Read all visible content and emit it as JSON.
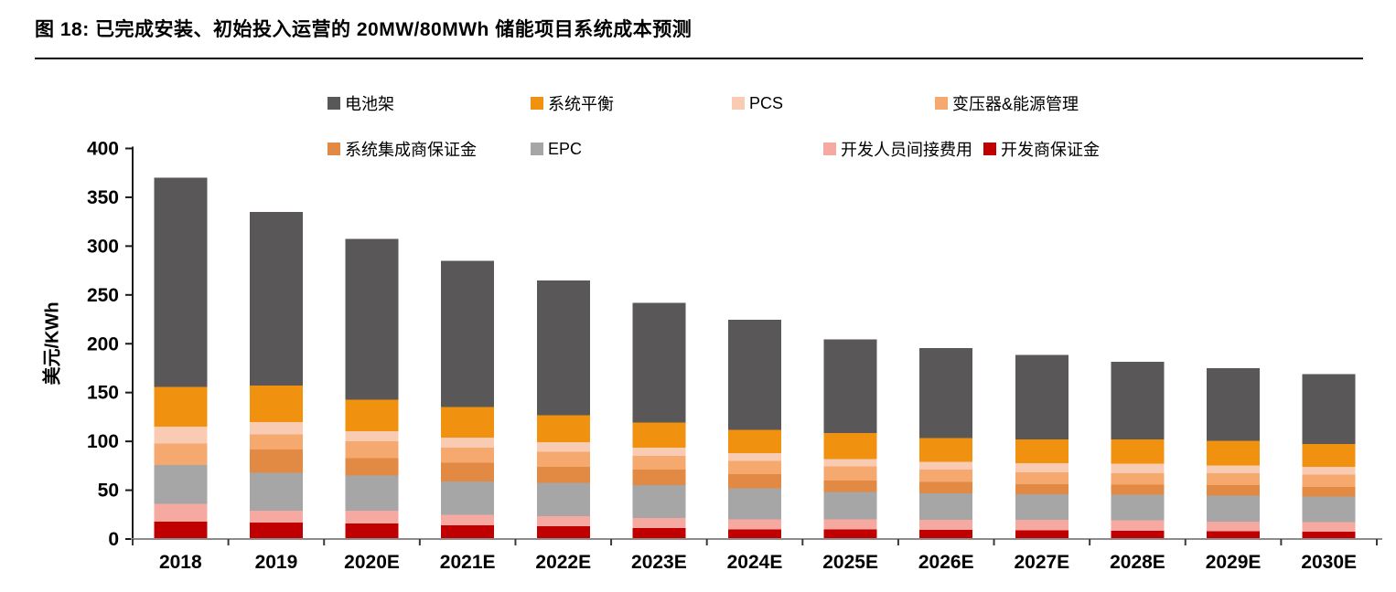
{
  "figure": {
    "title": "图 18: 已完成安装、初始投入运营的 20MW/80MWh 储能项目系统成本预测"
  },
  "chart_data": {
    "type": "bar",
    "stacked": true,
    "categories": [
      "2018",
      "2019",
      "2020E",
      "2021E",
      "2022E",
      "2023E",
      "2024E",
      "2025E",
      "2026E",
      "2027E",
      "2028E",
      "2029E",
      "2030E"
    ],
    "ylabel": "美元/KWh",
    "ylim": [
      0,
      400
    ],
    "ytick_step": 50,
    "grid": false,
    "legend_position": "top",
    "stack_note": "series listed top-of-stack first; stacked bottom-to-top in reverse order",
    "series": [
      {
        "id": "battery-rack",
        "name": "电池架",
        "color": "#595757",
        "values": [
          214,
          178,
          165,
          150,
          138,
          122.5,
          112.5,
          96,
          92,
          86.5,
          79.5,
          74.5,
          71.5
        ]
      },
      {
        "id": "balance-of-system",
        "name": "系统平衡",
        "color": "#F0920F",
        "values": [
          41,
          37,
          32,
          31,
          28,
          26,
          24,
          26.5,
          24.5,
          24.5,
          25,
          25,
          23.5
        ]
      },
      {
        "id": "pcs",
        "name": "PCS",
        "color": "#F9CBB3",
        "values": [
          17,
          13,
          10.5,
          10.5,
          9.5,
          8.5,
          8,
          7.5,
          8,
          9,
          9.5,
          8,
          8
        ]
      },
      {
        "id": "transformer-energy-mgmt",
        "name": "变压器&能源管理",
        "color": "#F6A96F",
        "values": [
          22,
          15.5,
          17,
          15.5,
          15.5,
          14,
          13.5,
          14.5,
          12.5,
          12.5,
          12,
          12.5,
          12.5
        ]
      },
      {
        "id": "integrator-margin",
        "name": "系统集成商保证金",
        "color": "#E28A43",
        "values": [
          0,
          23.5,
          18,
          19,
          16.5,
          16,
          14.5,
          12,
          11.5,
          10,
          10,
          10.5,
          10
        ]
      },
      {
        "id": "epc",
        "name": "EPC",
        "color": "#A6A6A6",
        "values": [
          40,
          39,
          36,
          34,
          34,
          33.5,
          32,
          28,
          27.5,
          26.5,
          26.5,
          26.5,
          26
        ]
      },
      {
        "id": "developer-overhead",
        "name": "开发人员间接费用",
        "color": "#F5A9A0",
        "values": [
          18,
          12,
          13,
          11,
          10.5,
          10.5,
          10,
          10,
          10,
          10.5,
          10.5,
          10,
          10
        ]
      },
      {
        "id": "developer-margin",
        "name": "开发商保证金",
        "color": "#C00000",
        "values": [
          18,
          17,
          16,
          14,
          13,
          11,
          10,
          10,
          9.5,
          9,
          8.5,
          8,
          7.5
        ]
      }
    ],
    "axis_colors": {
      "y_axis": "#1a1a1a",
      "x_axis": "#8c8c8c",
      "tick": "#3a3a3a"
    }
  }
}
